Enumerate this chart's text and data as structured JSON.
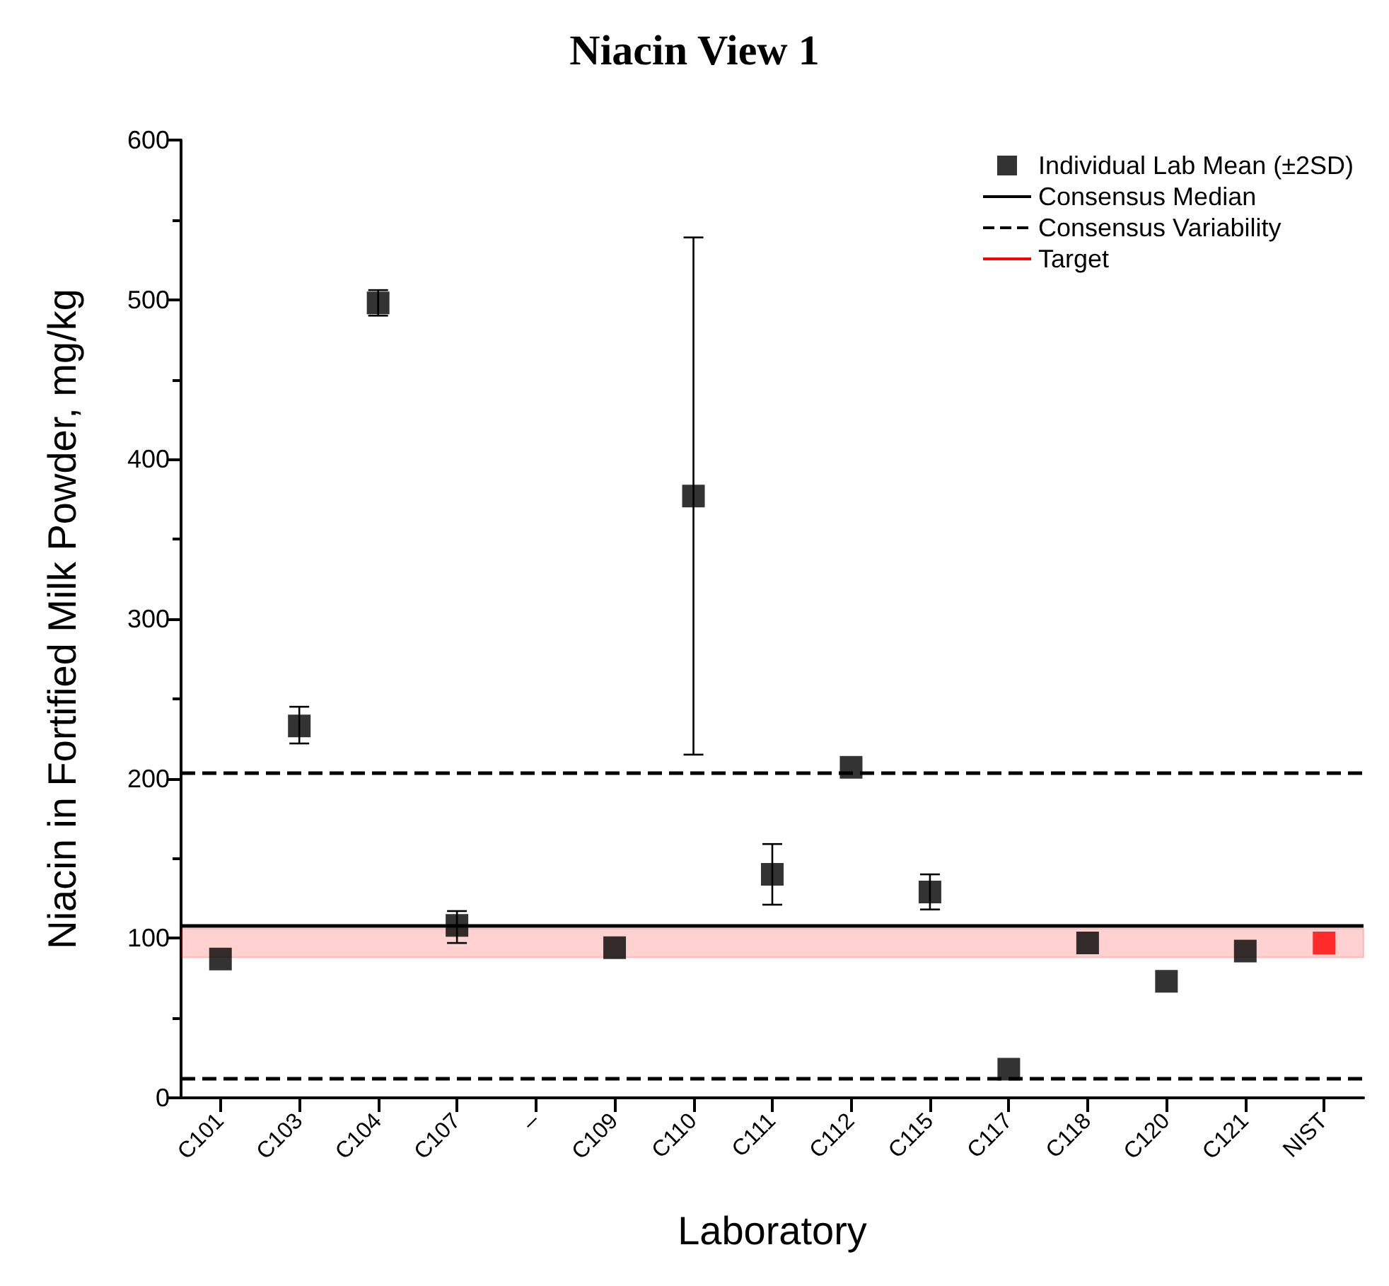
{
  "chart_data": {
    "type": "scatter",
    "title": "Niacin View 1",
    "xlabel": "Laboratory",
    "ylabel": "Niacin in Fortified Milk Powder, mg/kg",
    "categories": [
      "C101",
      "C103",
      "C104",
      "C107",
      "–",
      "C109",
      "C110",
      "C111",
      "C112",
      "C115",
      "C117",
      "C118",
      "C120",
      "C121",
      "NIST"
    ],
    "series": [
      {
        "name": "Individual Lab Mean (±2SD)",
        "color": "#000000",
        "colors": [
          "#000000",
          "#000000",
          "#000000",
          "#000000",
          "#000000",
          "#000000",
          "#000000",
          "#000000",
          "#000000",
          "#000000",
          "#000000",
          "#000000",
          "#000000",
          "#000000",
          "#ff0000"
        ],
        "values": [
          87,
          233,
          498,
          108,
          null,
          94,
          377,
          140,
          207,
          129,
          18,
          97,
          73,
          92,
          97
        ],
        "errors": [
          null,
          [
            222,
            245
          ],
          [
            490,
            506
          ],
          [
            97,
            117
          ],
          null,
          null,
          [
            215,
            539
          ],
          [
            121,
            159
          ],
          null,
          [
            118,
            140
          ],
          null,
          null,
          null,
          null,
          null
        ]
      }
    ],
    "marker": "square",
    "ylim": [
      0,
      600
    ],
    "yticks": [
      0,
      100,
      200,
      300,
      400,
      500,
      600
    ],
    "ref_lines": [
      {
        "axis": "y",
        "value": 108,
        "label": "Consensus Median",
        "color": "#000000",
        "line_style": "solid"
      },
      {
        "axis": "y",
        "value": 204,
        "label": "Consensus Variability",
        "color": "#000000",
        "line_style": "dashed"
      },
      {
        "axis": "y",
        "value": 12,
        "color": "#000000",
        "line_style": "dashed"
      }
    ],
    "bands": [
      {
        "axis": "y",
        "from": 88,
        "to": 106,
        "label": "Target",
        "color": "#ff0000"
      }
    ],
    "grid": false,
    "legend": "top right"
  }
}
